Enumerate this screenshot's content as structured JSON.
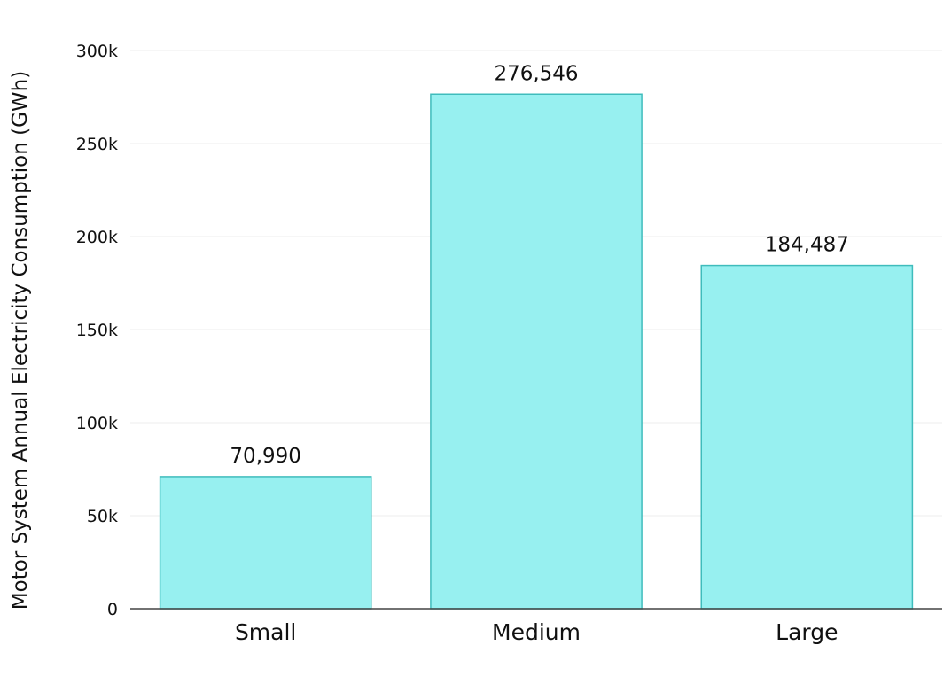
{
  "chart_data": {
    "type": "bar",
    "title": "",
    "xlabel": "",
    "ylabel": "Motor System Annual Electricity Consumption (GWh)",
    "categories": [
      "Small",
      "Medium",
      "Large"
    ],
    "values": [
      70990,
      276546,
      184487
    ],
    "data_labels": [
      "70,990",
      "276,546",
      "184,487"
    ],
    "ylim": [
      0,
      300000
    ],
    "yticks": [
      0,
      50000,
      100000,
      150000,
      200000,
      250000,
      300000
    ],
    "ytick_labels": [
      "0",
      "50k",
      "100k",
      "150k",
      "200k",
      "250k",
      "300k"
    ],
    "grid": true,
    "legend": "none",
    "colors": {
      "bar_fill": "#97f0f0",
      "bar_stroke": "#3fbcbc",
      "grid": "#eeeeee",
      "axis": "#444444"
    }
  }
}
